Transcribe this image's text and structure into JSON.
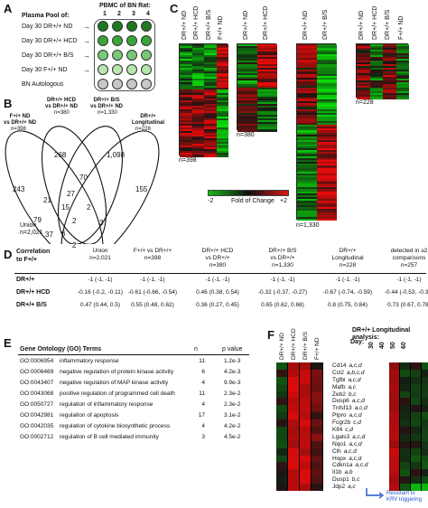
{
  "panels": {
    "A": {
      "letter": "A",
      "plasma_title": "Plasma Pool of:",
      "pbmc_title": "PBMC of BN Rat:",
      "columns": [
        "1",
        "2",
        "3",
        "4"
      ],
      "rows": [
        "Day 30 DR+/+ ND",
        "Day 30 DR+/+ HCD",
        "Day 30 DR+/+ B/S",
        "Day 30 F+/+ ND",
        "BN Autologous"
      ],
      "well_colors": [
        "#1f7a1f",
        "#3aa53a",
        "#78c878",
        "#b8e4b0",
        "#c8c8c8"
      ]
    },
    "B": {
      "letter": "B",
      "sets": [
        {
          "title": "F+/+ ND\nvs DR+/+ ND",
          "n": "n=398"
        },
        {
          "title": "DR+/+ HCD\nvs DR+/+ ND",
          "n": "n=380"
        },
        {
          "title": "DR+/+ B/S\nvs DR+/+ ND",
          "n": "n=1,330"
        },
        {
          "title": "DR+/+\nLongitudinal",
          "n": "n=228"
        }
      ],
      "counts": [
        "268",
        "1,098",
        "243",
        "70",
        "27",
        "155",
        "21",
        "15",
        "2",
        "79",
        "2",
        "3",
        "37",
        "6",
        "2"
      ],
      "union_label": "Union",
      "union_n": "n=2,021"
    },
    "C": {
      "letter": "C",
      "block_labels": [
        [
          "DR+/+ ND",
          "DR+/+ HCD",
          "DR+/+ B/S",
          "F+/+ ND"
        ],
        [
          "DR+/+ ND",
          "DR+/+ HCD"
        ],
        [
          "DR+/+ ND",
          "DR+/+ B/S"
        ],
        [
          "DR+/+ ND",
          "DR+/+ HCD",
          "DR+/+ B/S",
          "F+/+ ND"
        ]
      ],
      "block_n": [
        "n=398",
        "n=380",
        "n=1,330",
        "n=228"
      ],
      "scale_min": "-2",
      "scale_max": "+2",
      "scale_label": "Fold of Change"
    },
    "D": {
      "letter": "D",
      "corner": "Correlation\nto F+/+",
      "headers": [
        "Union\nn=2,021",
        "F+/+ vs DR+/+\nn=398",
        "DR+/+ HCD\nvs DR+/+\nn=380",
        "DR+/+ B/S\nvs DR+/+\nn=1,330",
        "DR+/+\nLongitudinal\nn=228",
        "detected in ≥2\ncomparisons\nn=257"
      ],
      "rows": [
        {
          "label": "DR+/+",
          "values": [
            "-1 (-1, -1)",
            "-1 (-1, -1)",
            "-1 (-1, -1)",
            "-1 (-1, -1)",
            "-1 (-1, -1)",
            "-1 (-1, -1)"
          ]
        },
        {
          "label": "DR+/+ HCD",
          "values": [
            "-0.16 (-0.2, -0.11)",
            "-0.61 (-0.66, -0.54)",
            "0.46 (0.38, 0.54)",
            "-0.32 (-0.37, -0.27)",
            "-0.67 (-0.74, -0.59)",
            "-0.44 (-0.53, -0.33)"
          ]
        },
        {
          "label": "DR+/+ B/S",
          "values": [
            "0.47 (0.44, 0.5)",
            "0.55 (0.48, 0.62)",
            "0.36 (0.27, 0.45)",
            "0.65 (0.62, 0.68)",
            "0.8 (0.75, 0.84)",
            "0.73 (0.67, 0.78)"
          ]
        }
      ]
    },
    "E": {
      "letter": "E",
      "title": "Gene Ontology (GO) Terms",
      "col_n": "n",
      "col_p": "p value",
      "terms": [
        {
          "id": "GO:0006954",
          "name": "inflammatory response",
          "n": "11",
          "p": "1.2e-3"
        },
        {
          "id": "GO:0006469",
          "name": "negative regulation of protein kinase activity",
          "n": "6",
          "p": "4.2e-3"
        },
        {
          "id": "GO:0043407",
          "name": "negative regulation of MAP kinase activity",
          "n": "4",
          "p": "9.9e-3"
        },
        {
          "id": "GO:0043068",
          "name": "positive regulation of programmed cell death",
          "n": "11",
          "p": "2.3e-2"
        },
        {
          "id": "GO:0050727",
          "name": "regulation of inflammatory response",
          "n": "4",
          "p": "2.3e-2"
        },
        {
          "id": "GO:0042981",
          "name": "regulation of apoptosis",
          "n": "17",
          "p": "3.1e-2"
        },
        {
          "id": "GO:0042035",
          "name": "regulation of cytokine biosynthetic process",
          "n": "4",
          "p": "4.2e-2"
        },
        {
          "id": "GO:0002712",
          "name": "regulation of B cell mediated immunity",
          "n": "3",
          "p": "4.5e-2"
        }
      ]
    },
    "F": {
      "letter": "F",
      "col_labels": [
        "DR+/+ ND",
        "DR+/+ HCD",
        "DR+/+ B/S",
        "F+/+ ND"
      ],
      "long_title": "DR+/+ Longitudinal analysis:",
      "day_label": "Day:",
      "days": [
        "30",
        "40",
        "50",
        "60"
      ],
      "genes": [
        {
          "name": "Cd14",
          "tag": "a,c,d"
        },
        {
          "name": "Ccl2",
          "tag": "a,b,c,d"
        },
        {
          "name": "Tgfbi",
          "tag": "a,c,d"
        },
        {
          "name": "Mafb",
          "tag": "a,c"
        },
        {
          "name": "Zeb2",
          "tag": "b,c"
        },
        {
          "name": "Dusp6",
          "tag": "a,c,d"
        },
        {
          "name": "Tnfsf13",
          "tag": "a,c,d"
        },
        {
          "name": "Ptpro",
          "tag": "a,c,d"
        },
        {
          "name": "Fcgr2b",
          "tag": "c,d"
        },
        {
          "name": "Klf4",
          "tag": "c,d"
        },
        {
          "name": "Lgals3",
          "tag": "a,c,d"
        },
        {
          "name": "Nqo1",
          "tag": "a,c,d"
        },
        {
          "name": "Clh",
          "tag": "a,c,d"
        },
        {
          "name": "Hopx",
          "tag": "a,c,d"
        },
        {
          "name": "Cdkn1a",
          "tag": "a,c,d"
        },
        {
          "name": "Il1b",
          "tag": "a,b"
        },
        {
          "name": "Dusp1",
          "tag": "b,c"
        },
        {
          "name": "Jdp2",
          "tag": "a,c"
        }
      ],
      "note": "Resistant to\nKRV triggering"
    }
  }
}
